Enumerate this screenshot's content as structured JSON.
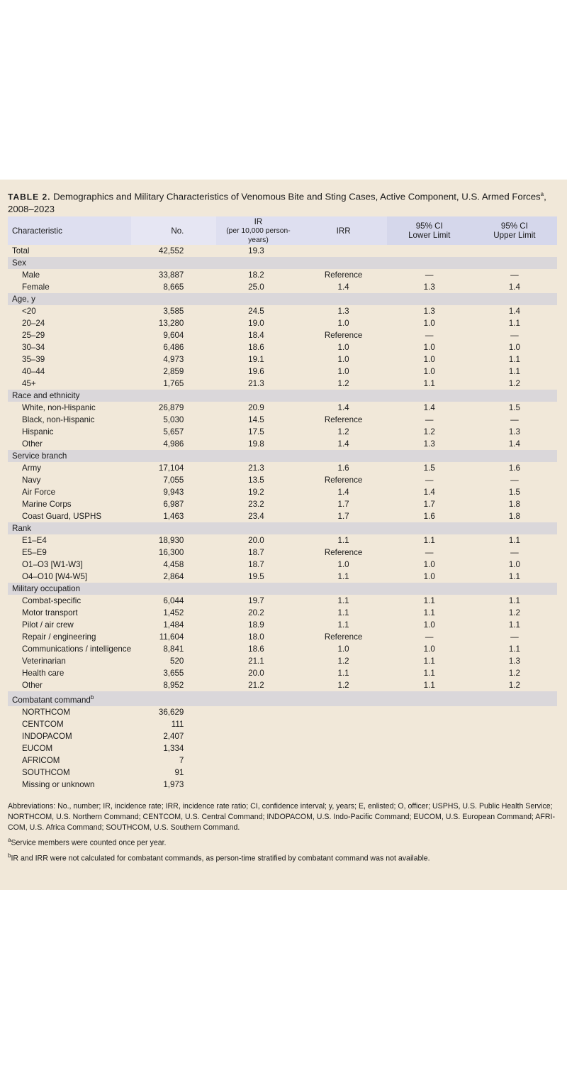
{
  "title": {
    "label": "TABLE 2.",
    "text": "Demographics and Military Characteristics of Venomous Bite and Sting Cases, Active Component, U.S. Armed Forces",
    "sup": "a",
    "years": ", 2008–2023"
  },
  "headers": {
    "characteristic": "Characteristic",
    "no": "No.",
    "ir": "IR",
    "ir_sub": "(per 10,000 person-years)",
    "irr": "IRR",
    "lo1": "95% CI",
    "lo2": "Lower Limit",
    "hi1": "95% CI",
    "hi2": "Upper Limit"
  },
  "rows": [
    {
      "type": "top",
      "label": "Total",
      "no": "42,552",
      "ir": "19.3",
      "irr": "",
      "lo": "",
      "hi": ""
    },
    {
      "type": "group",
      "label": "Sex"
    },
    {
      "label": "Male",
      "no": "33,887",
      "ir": "18.2",
      "irr": "Reference",
      "lo": "—",
      "hi": "—"
    },
    {
      "label": "Female",
      "no": "8,665",
      "ir": "25.0",
      "irr": "1.4",
      "lo": "1.3",
      "hi": "1.4"
    },
    {
      "type": "group",
      "label": "Age, y"
    },
    {
      "label": "<20",
      "no": "3,585",
      "ir": "24.5",
      "irr": "1.3",
      "lo": "1.3",
      "hi": "1.4"
    },
    {
      "label": "20–24",
      "no": "13,280",
      "ir": "19.0",
      "irr": "1.0",
      "lo": "1.0",
      "hi": "1.1"
    },
    {
      "label": "25–29",
      "no": "9,604",
      "ir": "18.4",
      "irr": "Reference",
      "lo": "—",
      "hi": "—"
    },
    {
      "label": "30–34",
      "no": "6,486",
      "ir": "18.6",
      "irr": "1.0",
      "lo": "1.0",
      "hi": "1.0"
    },
    {
      "label": "35–39",
      "no": "4,973",
      "ir": "19.1",
      "irr": "1.0",
      "lo": "1.0",
      "hi": "1.1"
    },
    {
      "label": "40–44",
      "no": "2,859",
      "ir": "19.6",
      "irr": "1.0",
      "lo": "1.0",
      "hi": "1.1"
    },
    {
      "label": "45+",
      "no": "1,765",
      "ir": "21.3",
      "irr": "1.2",
      "lo": "1.1",
      "hi": "1.2"
    },
    {
      "type": "group",
      "label": "Race and ethnicity"
    },
    {
      "label": "White, non-Hispanic",
      "no": "26,879",
      "ir": "20.9",
      "irr": "1.4",
      "lo": "1.4",
      "hi": "1.5"
    },
    {
      "label": "Black, non-Hispanic",
      "no": "5,030",
      "ir": "14.5",
      "irr": "Reference",
      "lo": "—",
      "hi": "—"
    },
    {
      "label": "Hispanic",
      "no": "5,657",
      "ir": "17.5",
      "irr": "1.2",
      "lo": "1.2",
      "hi": "1.3"
    },
    {
      "label": "Other",
      "no": "4,986",
      "ir": "19.8",
      "irr": "1.4",
      "lo": "1.3",
      "hi": "1.4"
    },
    {
      "type": "group",
      "label": "Service branch"
    },
    {
      "label": "Army",
      "no": "17,104",
      "ir": "21.3",
      "irr": "1.6",
      "lo": "1.5",
      "hi": "1.6"
    },
    {
      "label": "Navy",
      "no": "7,055",
      "ir": "13.5",
      "irr": "Reference",
      "lo": "—",
      "hi": "—"
    },
    {
      "label": "Air Force",
      "no": "9,943",
      "ir": "19.2",
      "irr": "1.4",
      "lo": "1.4",
      "hi": "1.5"
    },
    {
      "label": "Marine Corps",
      "no": "6,987",
      "ir": "23.2",
      "irr": "1.7",
      "lo": "1.7",
      "hi": "1.8"
    },
    {
      "label": "Coast Guard, USPHS",
      "no": "1,463",
      "ir": "23.4",
      "irr": "1.7",
      "lo": "1.6",
      "hi": "1.8"
    },
    {
      "type": "group",
      "label": "Rank"
    },
    {
      "label": "E1–E4",
      "no": "18,930",
      "ir": "20.0",
      "irr": "1.1",
      "lo": "1.1",
      "hi": "1.1"
    },
    {
      "label": "E5–E9",
      "no": "16,300",
      "ir": "18.7",
      "irr": "Reference",
      "lo": "—",
      "hi": "—"
    },
    {
      "label": "O1–O3 [W1-W3]",
      "no": "4,458",
      "ir": "18.7",
      "irr": "1.0",
      "lo": "1.0",
      "hi": "1.0"
    },
    {
      "label": "O4–O10 [W4-W5]",
      "no": "2,864",
      "ir": "19.5",
      "irr": "1.1",
      "lo": "1.0",
      "hi": "1.1"
    },
    {
      "type": "group",
      "label": "Military occupation"
    },
    {
      "label": "Combat-specific",
      "no": "6,044",
      "ir": "19.7",
      "irr": "1.1",
      "lo": "1.1",
      "hi": "1.1"
    },
    {
      "label": "Motor transport",
      "no": "1,452",
      "ir": "20.2",
      "irr": "1.1",
      "lo": "1.1",
      "hi": "1.2"
    },
    {
      "label": "Pilot / air crew",
      "no": "1,484",
      "ir": "18.9",
      "irr": "1.1",
      "lo": "1.0",
      "hi": "1.1"
    },
    {
      "label": "Repair / engineering",
      "no": "11,604",
      "ir": "18.0",
      "irr": "Reference",
      "lo": "—",
      "hi": "—"
    },
    {
      "label": "Communications / intelligence",
      "no": "8,841",
      "ir": "18.6",
      "irr": "1.0",
      "lo": "1.0",
      "hi": "1.1"
    },
    {
      "label": "Veterinarian",
      "no": "520",
      "ir": "21.1",
      "irr": "1.2",
      "lo": "1.1",
      "hi": "1.3"
    },
    {
      "label": "Health care",
      "no": "3,655",
      "ir": "20.0",
      "irr": "1.1",
      "lo": "1.1",
      "hi": "1.2"
    },
    {
      "label": "Other",
      "no": "8,952",
      "ir": "21.2",
      "irr": "1.2",
      "lo": "1.1",
      "hi": "1.2"
    },
    {
      "type": "group",
      "label": "Combatant command",
      "sup": "b"
    },
    {
      "label": "NORTHCOM",
      "no": "36,629",
      "ir": "",
      "irr": "",
      "lo": "",
      "hi": ""
    },
    {
      "label": "CENTCOM",
      "no": "111",
      "ir": "",
      "irr": "",
      "lo": "",
      "hi": ""
    },
    {
      "label": "INDOPACOM",
      "no": "2,407",
      "ir": "",
      "irr": "",
      "lo": "",
      "hi": ""
    },
    {
      "label": "EUCOM",
      "no": "1,334",
      "ir": "",
      "irr": "",
      "lo": "",
      "hi": ""
    },
    {
      "label": "AFRICOM",
      "no": "7",
      "ir": "",
      "irr": "",
      "lo": "",
      "hi": ""
    },
    {
      "label": "SOUTHCOM",
      "no": "91",
      "ir": "",
      "irr": "",
      "lo": "",
      "hi": ""
    },
    {
      "label": "Missing or unknown",
      "no": "1,973",
      "ir": "",
      "irr": "",
      "lo": "",
      "hi": ""
    }
  ],
  "notes": {
    "abbreviations": "Abbreviations: No., number; IR, incidence rate; IRR, incidence rate ratio; CI, confidence interval; y, years; E, enlisted; O, officer; USPHS, U.S. Public Health Service; NORTHCOM, U.S. Northern Command; CENTCOM, U.S. Central Command; INDOPACOM, U.S. Indo-Pacific Command; EUCOM, U.S. European Command; AFRI-COM, U.S. Africa Command; SOUTHCOM, U.S. Southern Command.",
    "a_mark": "a",
    "a": "Service members were counted once per year.",
    "b_mark": "b",
    "b": "IR and IRR were not calculated for combatant commands, as person-time stratified by combatant command was not available."
  },
  "colors": {
    "panel": "#f1e8d9",
    "header": "#dedff0",
    "group_row": "#dad7da"
  }
}
